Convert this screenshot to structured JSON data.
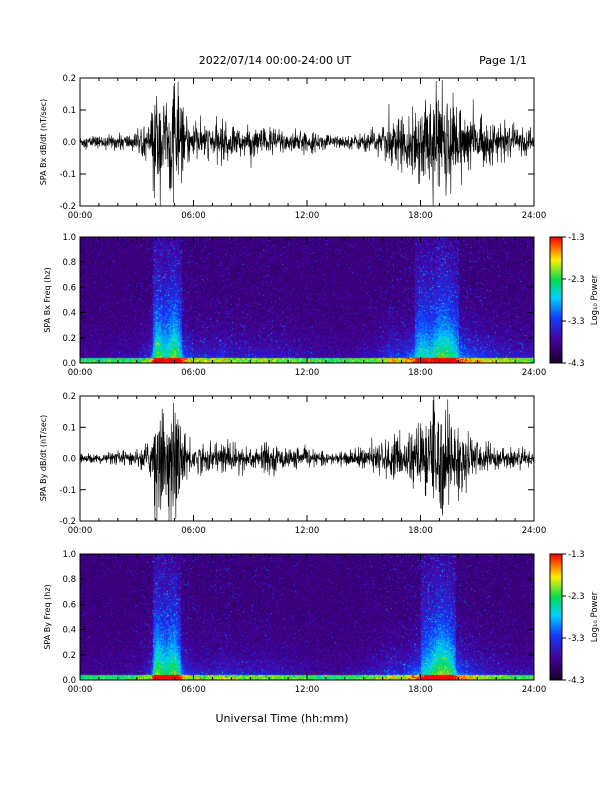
{
  "header": {
    "date_range": "2022/07/14  00:00-24:00 UT",
    "page": "Page 1/1"
  },
  "x_axis_label": "Universal Time (hh:mm)",
  "colors": {
    "spectrogram_background": "#1a0040",
    "trace": "#000000"
  },
  "chart_data": [
    {
      "type": "line",
      "panel": "Bx time series",
      "ylabel": "SPA Bx dB/dt (nT/sec)",
      "xlim": [
        0,
        24
      ],
      "ylim": [
        -0.2,
        0.2
      ],
      "x_ticks": [
        "00:00",
        "06:00",
        "12:00",
        "18:00",
        "24:00"
      ],
      "y_ticks": [
        "0.2",
        "0.1",
        "0.0",
        "-0.1",
        "-0.2"
      ],
      "envelope": {
        "hours": [
          0,
          1,
          2,
          3,
          3.7,
          4,
          4.5,
          5,
          5.5,
          6,
          7,
          7.5,
          8,
          9,
          10,
          11,
          12,
          13,
          14,
          15,
          16,
          16.4,
          17,
          17.5,
          18,
          18.5,
          19,
          19.5,
          20,
          21,
          22,
          23,
          24
        ],
        "amplitude": [
          0.02,
          0.02,
          0.025,
          0.03,
          0.06,
          0.19,
          0.14,
          0.2,
          0.09,
          0.06,
          0.05,
          0.07,
          0.05,
          0.045,
          0.05,
          0.04,
          0.03,
          0.025,
          0.02,
          0.03,
          0.05,
          0.08,
          0.07,
          0.1,
          0.15,
          0.13,
          0.18,
          0.17,
          0.12,
          0.08,
          0.06,
          0.045,
          0.04
        ]
      }
    },
    {
      "type": "heatmap",
      "panel": "Bx spectrogram",
      "ylabel": "SPA Bx Freq (hz)",
      "xlim": [
        0,
        24
      ],
      "ylim": [
        0,
        1
      ],
      "x_ticks": [
        "00:00",
        "06:00",
        "12:00",
        "18:00",
        "24:00"
      ],
      "y_ticks": [
        "1.0",
        "0.8",
        "0.6",
        "0.4",
        "0.2",
        "0.0"
      ],
      "colorbar": {
        "label": "Log₁₀ Power",
        "ticks": [
          "-1.3",
          "-2.3",
          "-3.3",
          "-4.3"
        ],
        "range": [
          -4.3,
          -1.3
        ]
      }
    },
    {
      "type": "line",
      "panel": "By time series",
      "ylabel": "SPA By dB/dt (nT/sec)",
      "xlim": [
        0,
        24
      ],
      "ylim": [
        -0.2,
        0.2
      ],
      "x_ticks": [
        "00:00",
        "06:00",
        "12:00",
        "18:00",
        "24:00"
      ],
      "y_ticks": [
        "0.2",
        "0.1",
        "0.0",
        "-0.1",
        "-0.2"
      ],
      "envelope": {
        "hours": [
          0,
          1,
          2,
          3,
          3.7,
          4,
          4.5,
          5,
          5.5,
          6,
          7,
          7.5,
          8,
          9,
          10,
          11,
          12,
          13,
          14,
          15,
          16,
          16.4,
          17,
          17.5,
          18,
          18.5,
          19,
          19.5,
          20,
          21,
          22,
          23,
          24
        ],
        "amplitude": [
          0.015,
          0.015,
          0.02,
          0.025,
          0.06,
          0.2,
          0.16,
          0.19,
          0.08,
          0.05,
          0.045,
          0.06,
          0.05,
          0.045,
          0.045,
          0.035,
          0.025,
          0.02,
          0.02,
          0.035,
          0.05,
          0.07,
          0.06,
          0.09,
          0.12,
          0.15,
          0.2,
          0.18,
          0.1,
          0.06,
          0.04,
          0.03,
          0.03
        ]
      }
    },
    {
      "type": "heatmap",
      "panel": "By spectrogram",
      "ylabel": "SPA By Freq (hz)",
      "xlim": [
        0,
        24
      ],
      "ylim": [
        0,
        1
      ],
      "x_ticks": [
        "00:00",
        "06:00",
        "12:00",
        "18:00",
        "24:00"
      ],
      "y_ticks": [
        "1.0",
        "0.8",
        "0.6",
        "0.4",
        "0.2",
        "0.0"
      ],
      "colorbar": {
        "label": "Log₁₀ Power",
        "ticks": [
          "-1.3",
          "-2.3",
          "-3.3",
          "-4.3"
        ],
        "range": [
          -4.3,
          -1.3
        ]
      }
    }
  ]
}
